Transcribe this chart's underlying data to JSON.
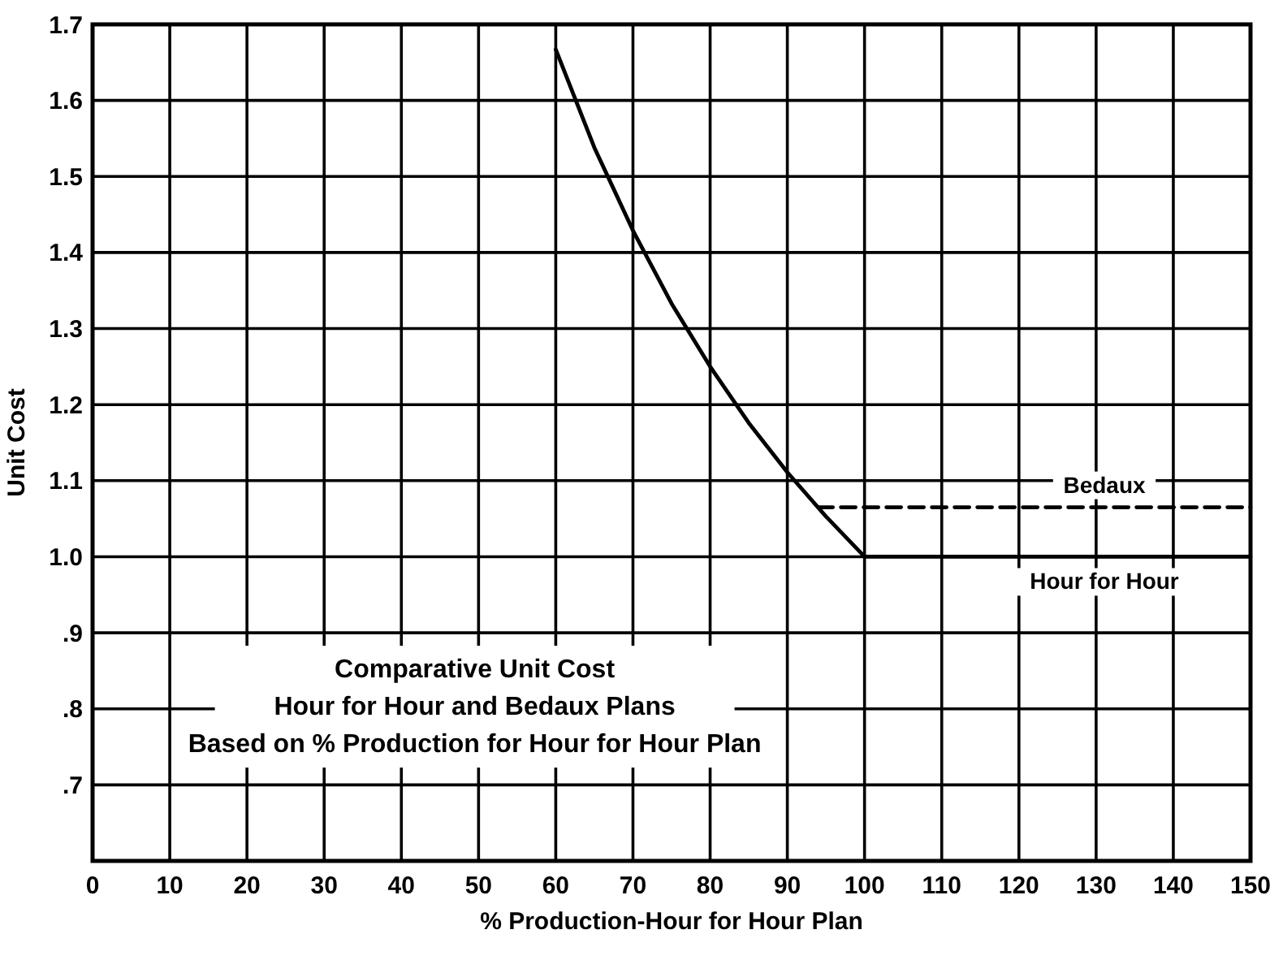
{
  "chart_data": {
    "type": "line",
    "xlabel": "% Production-Hour for Hour Plan",
    "ylabel": "Unit Cost",
    "xlim": [
      0,
      150
    ],
    "xticks": [
      0,
      10,
      20,
      30,
      40,
      50,
      60,
      70,
      80,
      90,
      100,
      110,
      120,
      130,
      140,
      150
    ],
    "ylim": [
      0.6,
      1.7
    ],
    "yticks": [
      {
        "value": 0.7,
        "label": ".7"
      },
      {
        "value": 0.8,
        "label": ".8"
      },
      {
        "value": 0.9,
        "label": ".9"
      },
      {
        "value": 1.0,
        "label": "1.0"
      },
      {
        "value": 1.1,
        "label": "1.1"
      },
      {
        "value": 1.2,
        "label": "1.2"
      },
      {
        "value": 1.3,
        "label": "1.3"
      },
      {
        "value": 1.4,
        "label": "1.4"
      },
      {
        "value": 1.5,
        "label": "1.5"
      },
      {
        "value": 1.6,
        "label": "1.6"
      },
      {
        "value": 1.7,
        "label": "1.7"
      }
    ],
    "grid": true,
    "series": [
      {
        "name": "Hour for Hour",
        "color": "#000000",
        "line_style": "solid",
        "x": [
          60,
          65,
          70,
          75,
          80,
          85,
          90,
          95,
          100,
          150
        ],
        "values": [
          1.667,
          1.538,
          1.429,
          1.333,
          1.25,
          1.176,
          1.111,
          1.053,
          1.0,
          1.0
        ]
      },
      {
        "name": "Bedaux",
        "color": "#000000",
        "line_style": "dashed",
        "x": [
          94,
          150
        ],
        "values": [
          1.065,
          1.065
        ]
      }
    ],
    "annotations": [
      "Comparative  Unit Cost\nHour for Hour and Bedaux Plans\nBased on % Production for Hour for Hour Plan"
    ]
  }
}
